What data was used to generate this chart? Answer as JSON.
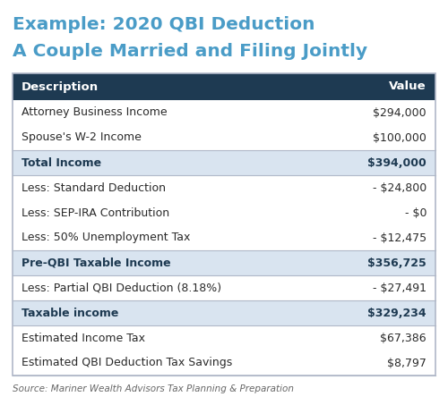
{
  "title_line1": "Example: 2020 QBI Deduction",
  "title_line2": "A Couple Married and Filing Jointly",
  "title_color": "#4a9cc7",
  "header": [
    "Description",
    "Value"
  ],
  "header_bg": "#1e3a52",
  "header_text_color": "#ffffff",
  "rows": [
    {
      "desc": "Attorney Business Income",
      "value": "$294,000",
      "bold": false,
      "bg": "#ffffff"
    },
    {
      "desc": "Spouse's W-2 Income",
      "value": "$100,000",
      "bold": false,
      "bg": "#ffffff"
    },
    {
      "desc": "Total Income",
      "value": "$394,000",
      "bold": true,
      "bg": "#d9e4f0"
    },
    {
      "desc": "Less: Standard Deduction",
      "value": "- $24,800",
      "bold": false,
      "bg": "#ffffff"
    },
    {
      "desc": "Less: SEP-IRA Contribution",
      "value": "- $0",
      "bold": false,
      "bg": "#ffffff"
    },
    {
      "desc": "Less: 50% Unemployment Tax",
      "value": "- $12,475",
      "bold": false,
      "bg": "#ffffff"
    },
    {
      "desc": "Pre-QBI Taxable Income",
      "value": "$356,725",
      "bold": true,
      "bg": "#d9e4f0"
    },
    {
      "desc": "Less: Partial QBI Deduction (8.18%)",
      "value": "- $27,491",
      "bold": false,
      "bg": "#ffffff"
    },
    {
      "desc": "Taxable income",
      "value": "$329,234",
      "bold": true,
      "bg": "#d9e4f0"
    },
    {
      "desc": "Estimated Income Tax",
      "value": "$67,386",
      "bold": false,
      "bg": "#ffffff"
    },
    {
      "desc": "Estimated QBI Deduction Tax Savings",
      "value": "$8,797",
      "bold": false,
      "bg": "#ffffff"
    }
  ],
  "row_heights": [
    1,
    1,
    1,
    1,
    1,
    1,
    1,
    1,
    1,
    1,
    1
  ],
  "footer": "Source: Mariner Wealth Advisors Tax Planning & Preparation",
  "footer_color": "#666666",
  "table_border_color": "#b0b8c8",
  "divider_color": "#b0b8c8",
  "fig_bg": "#ffffff",
  "title_fontsize": 14.5,
  "header_fontsize": 9.5,
  "row_fontsize": 9.0,
  "footer_fontsize": 7.5
}
